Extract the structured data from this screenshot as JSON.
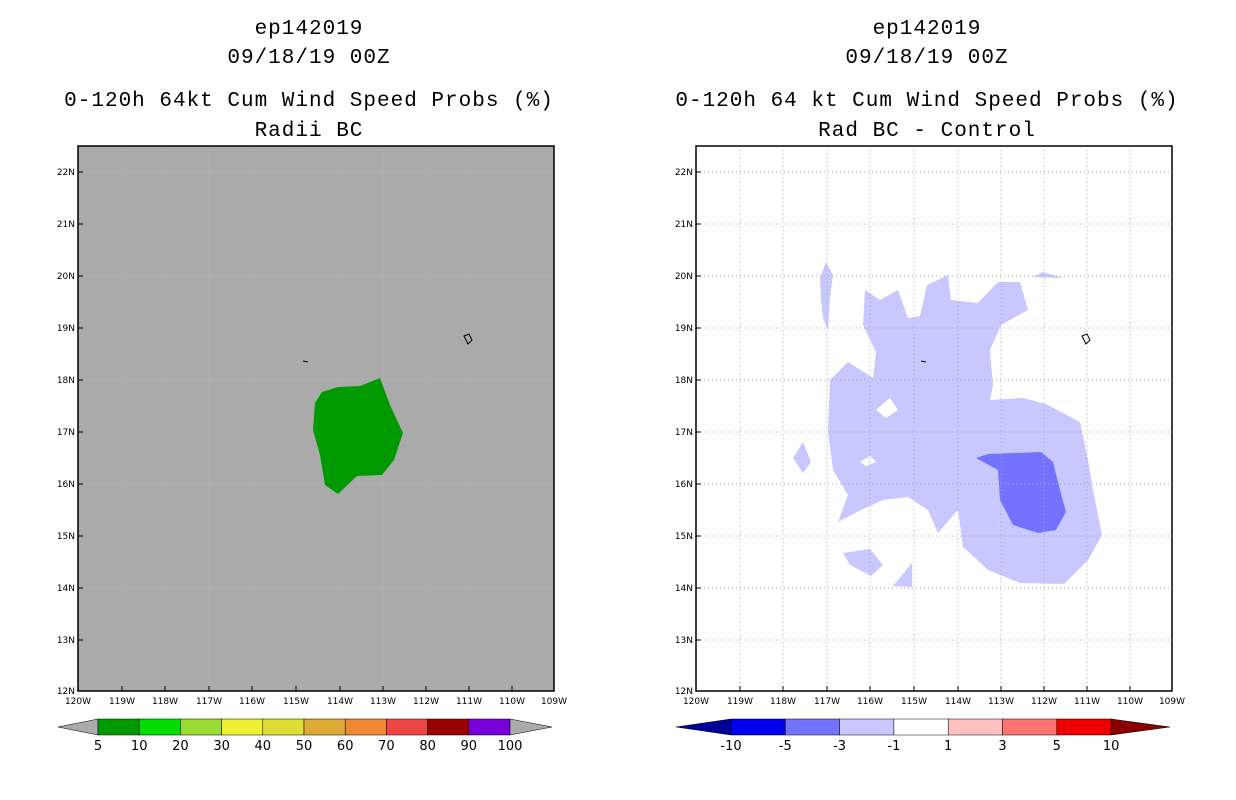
{
  "left_panel": {
    "storm_id": "ep142019",
    "datetime": "09/18/19 00Z",
    "title": "0-120h 64kt Cum Wind Speed Probs (%)",
    "subtitle": "Radii BC",
    "field_color": "#aaaaaa",
    "contour_color": "#009900",
    "colorbar": {
      "colors": [
        "#009900",
        "#00dd00",
        "#99dd33",
        "#eeee33",
        "#dddd33",
        "#ddaa33",
        "#ee8833",
        "#ee4444",
        "#990000",
        "#7700dd"
      ],
      "labels": [
        "5",
        "10",
        "20",
        "30",
        "40",
        "50",
        "60",
        "70",
        "80",
        "90",
        "100"
      ]
    }
  },
  "right_panel": {
    "storm_id": "ep142019",
    "datetime": "09/18/19 00Z",
    "title": "0-120h 64 kt Cum Wind Speed Probs (%)",
    "subtitle": "Rad BC - Control",
    "light_contour_color": "#c8c8ff",
    "mid_contour_color": "#7373ff",
    "colorbar": {
      "colors": [
        "#000099",
        "#0000ee",
        "#7373ff",
        "#c8c8ff",
        "#ffffff",
        "#ffc0c0",
        "#ff7373",
        "#ee0000",
        "#880000"
      ],
      "labels": [
        "-10",
        "-5",
        "-3",
        "-1",
        "1",
        "3",
        "5",
        "10"
      ]
    }
  },
  "map": {
    "lat_labels": [
      "22N",
      "21N",
      "20N",
      "19N",
      "18N",
      "17N",
      "16N",
      "15N",
      "14N",
      "13N",
      "12N"
    ],
    "lon_labels": [
      "120W",
      "119W",
      "118W",
      "117W",
      "116W",
      "115W",
      "114W",
      "113W",
      "112W",
      "111W",
      "110W",
      "109W"
    ]
  }
}
